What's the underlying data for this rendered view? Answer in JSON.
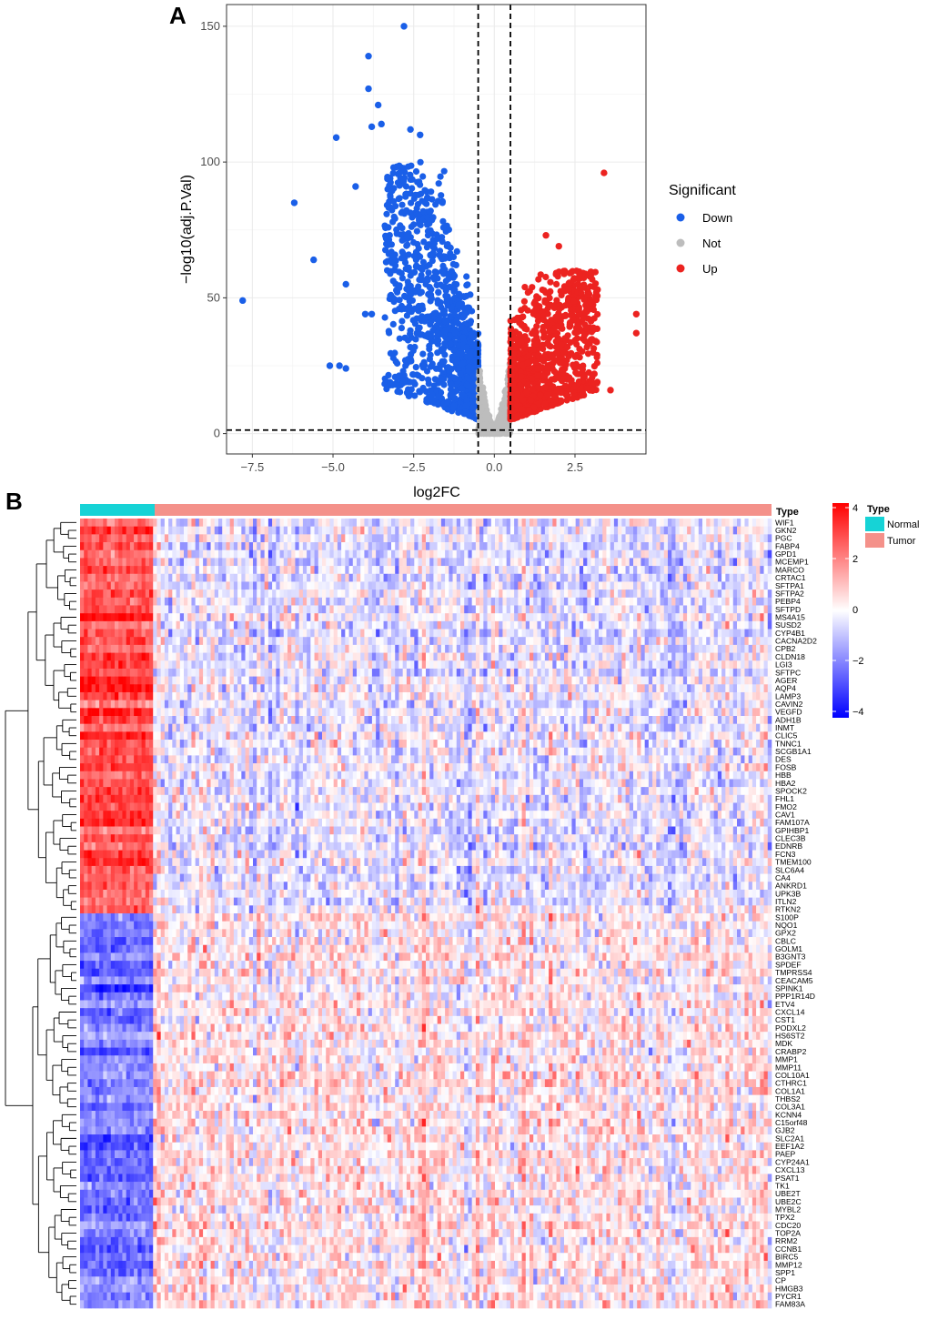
{
  "colors": {
    "down": "#1a5fe8",
    "not": "#bdbdbd",
    "up": "#ec2320",
    "normal": "#16d3d6",
    "tumor": "#f4918a",
    "heat_high": "#ff0000",
    "heat_mid": "#ffffff",
    "heat_low": "#0000ff",
    "grid": "#ebebeb",
    "panel_border": "#333333"
  },
  "chart_data": [
    {
      "type": "scatter",
      "panel_label": "A",
      "xlabel": "log2FC",
      "ylabel": "−log10(adj.P.Val)",
      "xlim": [
        -8.3,
        4.7
      ],
      "ylim": [
        -7.5,
        158
      ],
      "xticks": [
        -7.5,
        -5.0,
        -2.5,
        0.0,
        2.5
      ],
      "xtick_labels": [
        "−7.5",
        "−5.0",
        "−2.5",
        "0.0",
        "2.5"
      ],
      "yticks": [
        0,
        50,
        100,
        150
      ],
      "ytick_labels": [
        "0",
        "50",
        "100",
        "150"
      ],
      "thresholds": {
        "log2fc": [
          -0.5,
          0.5
        ],
        "neglog10p": 1.3
      },
      "legend": {
        "title": "Significant",
        "entries": [
          {
            "label": "Down",
            "color_key": "down"
          },
          {
            "label": "Not",
            "color_key": "not"
          },
          {
            "label": "Up",
            "color_key": "up"
          }
        ]
      },
      "highlight_points": [
        {
          "group": "down",
          "x": -2.8,
          "y": 150
        },
        {
          "group": "down",
          "x": -3.9,
          "y": 139
        },
        {
          "group": "down",
          "x": -3.9,
          "y": 127
        },
        {
          "group": "down",
          "x": -3.6,
          "y": 121
        },
        {
          "group": "down",
          "x": -3.8,
          "y": 113
        },
        {
          "group": "down",
          "x": -3.5,
          "y": 114
        },
        {
          "group": "down",
          "x": -4.9,
          "y": 109
        },
        {
          "group": "down",
          "x": -2.6,
          "y": 112
        },
        {
          "group": "down",
          "x": -2.3,
          "y": 110
        },
        {
          "group": "down",
          "x": -6.2,
          "y": 85
        },
        {
          "group": "down",
          "x": -5.6,
          "y": 64
        },
        {
          "group": "down",
          "x": -4.6,
          "y": 55
        },
        {
          "group": "down",
          "x": -7.8,
          "y": 49
        },
        {
          "group": "down",
          "x": -4.3,
          "y": 91
        },
        {
          "group": "down",
          "x": -4.0,
          "y": 44
        },
        {
          "group": "down",
          "x": -3.8,
          "y": 44
        },
        {
          "group": "down",
          "x": -5.1,
          "y": 25
        },
        {
          "group": "down",
          "x": -4.8,
          "y": 25
        },
        {
          "group": "down",
          "x": -4.6,
          "y": 24
        },
        {
          "group": "up",
          "x": 3.4,
          "y": 96
        },
        {
          "group": "up",
          "x": 4.4,
          "y": 44
        },
        {
          "group": "up",
          "x": 4.4,
          "y": 37
        },
        {
          "group": "up",
          "x": 1.6,
          "y": 73
        },
        {
          "group": "up",
          "x": 2.0,
          "y": 69
        },
        {
          "group": "up",
          "x": 3.2,
          "y": 53
        },
        {
          "group": "up",
          "x": 3.6,
          "y": 16
        },
        {
          "group": "up",
          "x": 3.1,
          "y": 22
        }
      ],
      "point_clouds": [
        {
          "group": "down",
          "n": 1150,
          "x_range": [
            -3.4,
            -0.5
          ],
          "y_max": 100
        },
        {
          "group": "not",
          "n": 450,
          "x_range": [
            -0.5,
            0.5
          ],
          "y_max": 25
        },
        {
          "group": "up",
          "n": 1100,
          "x_range": [
            0.5,
            3.2
          ],
          "y_max": 60
        }
      ]
    },
    {
      "type": "heatmap",
      "panel_label": "B",
      "annotation_label": "Type",
      "annotation_legend": {
        "title": "Type",
        "entries": [
          {
            "label": "Normal",
            "color_key": "normal"
          },
          {
            "label": "Tumor",
            "color_key": "tumor"
          }
        ]
      },
      "color_scale": {
        "min": -4,
        "max": 4,
        "ticks": [
          4,
          2,
          0,
          -2,
          -4
        ],
        "tick_labels": [
          "4",
          "2",
          "0",
          "−2",
          "−4"
        ]
      },
      "samples": {
        "normal": 59,
        "tumor": 535,
        "columns_drawn": 180
      },
      "genes_down_in_tumor": [
        "WIF1",
        "GKN2",
        "PGC",
        "FABP4",
        "GPD1",
        "MCEMP1",
        "MARCO",
        "CRTAC1",
        "SFTPA1",
        "SFTPA2",
        "PEBP4",
        "SFTPD",
        "MS4A15",
        "SUSD2",
        "CYP4B1",
        "CACNA2D2",
        "CPB2",
        "CLDN18",
        "LGI3",
        "SFTPC",
        "AGER",
        "AQP4",
        "LAMP3",
        "CAVIN2",
        "VEGFD",
        "ADH1B",
        "INMT",
        "CLIC5",
        "TNNC1",
        "SCGB1A1",
        "DES",
        "FOSB",
        "HBB",
        "HBA2",
        "SPOCK2",
        "FHL1",
        "FMO2",
        "CAV1",
        "FAM107A",
        "GPIHBP1",
        "CLEC3B",
        "EDNRB",
        "FCN3",
        "TMEM100",
        "SLC6A4",
        "CA4",
        "ANKRD1",
        "UPK3B",
        "ITLN2",
        "RTKN2"
      ],
      "genes_up_in_tumor": [
        "S100P",
        "NQO1",
        "GPX2",
        "CBLC",
        "GOLM1",
        "B3GNT3",
        "SPDEF",
        "TMPRSS4",
        "CEACAM5",
        "SPINK1",
        "PPP1R14D",
        "ETV4",
        "CXCL14",
        "CST1",
        "PODXL2",
        "HS6ST2",
        "MDK",
        "CRABP2",
        "MMP1",
        "MMP11",
        "COL10A1",
        "CTHRC1",
        "COL1A1",
        "THBS2",
        "COL3A1",
        "KCNN4",
        "C15orf48",
        "GJB2",
        "SLC2A1",
        "EEF1A2",
        "PAEP",
        "CYP24A1",
        "CXCL13",
        "PSAT1",
        "TK1",
        "UBE2T",
        "UBE2C",
        "MYBL2",
        "TPX2",
        "CDC20",
        "TOP2A",
        "RRM2",
        "CCNB1",
        "BIRC5",
        "MMP12",
        "SPP1",
        "CP",
        "HMGB3",
        "PYCR1",
        "FAM83A"
      ]
    }
  ]
}
